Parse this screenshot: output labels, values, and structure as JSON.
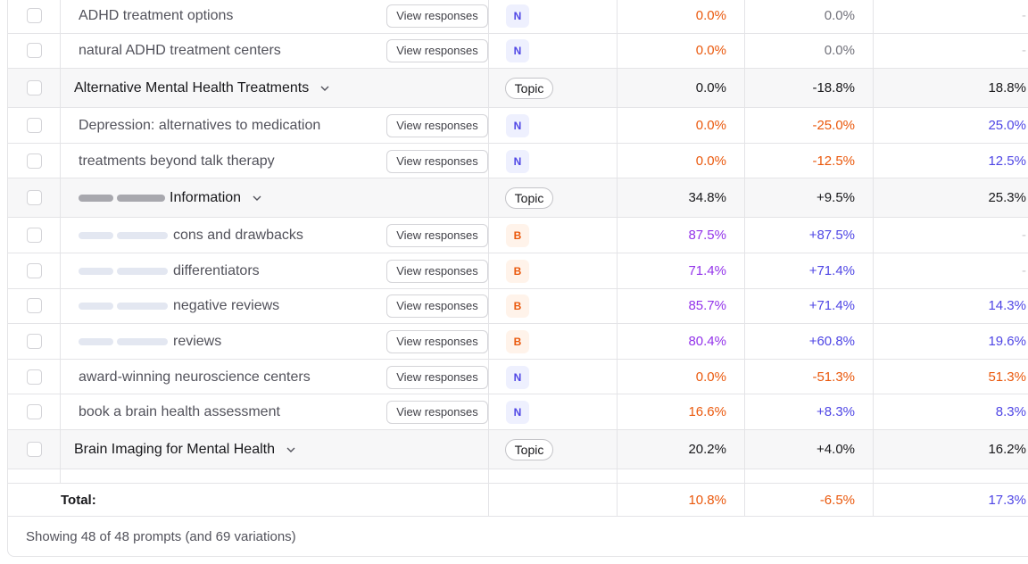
{
  "table": {
    "rows": [
      {
        "kind": "prompt",
        "name": "ADHD treatment options",
        "button": "View responses",
        "badge": "N",
        "values": [
          "0.0%",
          "0.0%",
          "-"
        ],
        "colors": [
          "orange",
          "gray",
          "light"
        ]
      },
      {
        "kind": "prompt",
        "name": "natural ADHD treatment centers",
        "button": "View responses",
        "badge": "N",
        "values": [
          "0.0%",
          "0.0%",
          "-"
        ],
        "colors": [
          "orange",
          "gray",
          "light"
        ]
      },
      {
        "kind": "topic",
        "name": "Alternative Mental Health Treatments",
        "badge": "Topic",
        "values": [
          "0.0%",
          "-18.8%",
          "18.8%"
        ],
        "colors": [
          "dark",
          "dark",
          "dark"
        ]
      },
      {
        "kind": "prompt",
        "name": "Depression: alternatives to medication",
        "button": "View responses",
        "badge": "N",
        "values": [
          "0.0%",
          "-25.0%",
          "25.0%"
        ],
        "colors": [
          "orange",
          "orange",
          "blue"
        ]
      },
      {
        "kind": "prompt",
        "name": "treatments beyond talk therapy",
        "button": "View responses",
        "badge": "N",
        "values": [
          "0.0%",
          "-12.5%",
          "12.5%"
        ],
        "colors": [
          "orange",
          "orange",
          "blue"
        ]
      },
      {
        "kind": "topic",
        "masked": true,
        "name": "Information",
        "badge": "Topic",
        "values": [
          "34.8%",
          "+9.5%",
          "25.3%"
        ],
        "colors": [
          "dark",
          "dark",
          "dark"
        ]
      },
      {
        "kind": "prompt",
        "masked": true,
        "name": "cons and drawbacks",
        "button": "View responses",
        "badge": "B",
        "values": [
          "87.5%",
          "+87.5%",
          "-"
        ],
        "colors": [
          "purple",
          "blue",
          "light"
        ]
      },
      {
        "kind": "prompt",
        "masked": true,
        "name": "differentiators",
        "button": "View responses",
        "badge": "B",
        "values": [
          "71.4%",
          "+71.4%",
          "-"
        ],
        "colors": [
          "purple",
          "blue",
          "light"
        ]
      },
      {
        "kind": "prompt",
        "masked": true,
        "name": "negative reviews",
        "button": "View responses",
        "badge": "B",
        "values": [
          "85.7%",
          "+71.4%",
          "14.3%"
        ],
        "colors": [
          "purple",
          "blue",
          "blue"
        ]
      },
      {
        "kind": "prompt",
        "masked": true,
        "name": "reviews",
        "button": "View responses",
        "badge": "B",
        "values": [
          "80.4%",
          "+60.8%",
          "19.6%"
        ],
        "colors": [
          "purple",
          "blue",
          "blue"
        ]
      },
      {
        "kind": "prompt",
        "name": "award-winning neuroscience centers",
        "button": "View responses",
        "badge": "N",
        "values": [
          "0.0%",
          "-51.3%",
          "51.3%"
        ],
        "colors": [
          "orange",
          "orange",
          "orange"
        ]
      },
      {
        "kind": "prompt",
        "name": "book a brain health assessment",
        "button": "View responses",
        "badge": "N",
        "values": [
          "16.6%",
          "+8.3%",
          "8.3%"
        ],
        "colors": [
          "orange",
          "blue",
          "blue"
        ]
      },
      {
        "kind": "topic",
        "name": "Brain Imaging for Mental Health",
        "badge": "Topic",
        "values": [
          "20.2%",
          "+4.0%",
          "16.2%"
        ],
        "colors": [
          "dark",
          "dark",
          "dark"
        ]
      }
    ],
    "total": {
      "label": "Total:",
      "values": [
        "10.8%",
        "-6.5%",
        "17.3%"
      ],
      "colors": [
        "orange",
        "orange",
        "blue"
      ]
    },
    "footer": "Showing 48 of 48 prompts (and 69 variations)"
  }
}
